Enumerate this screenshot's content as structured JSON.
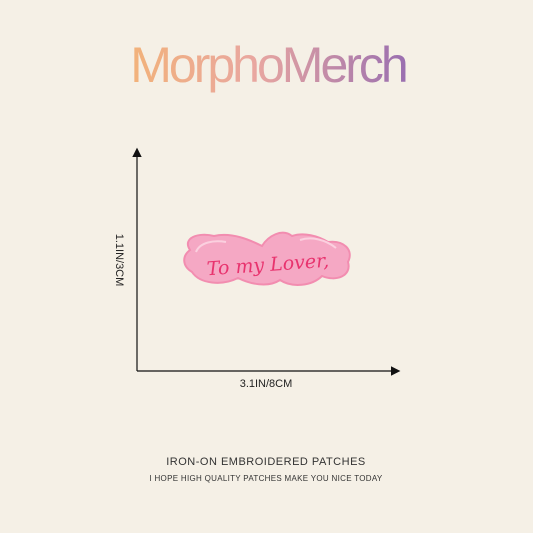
{
  "brand": "MorphoMerch",
  "product": {
    "patch_text": "To my Lover,",
    "height_label": "1.1IN/3CM",
    "width_label": "3.1IN/8CM"
  },
  "footer": {
    "title": "IRON-ON EMBROIDERED PATCHES",
    "subtitle": "I HOPE HIGH QUALITY PATCHES MAKE YOU NICE TODAY"
  }
}
